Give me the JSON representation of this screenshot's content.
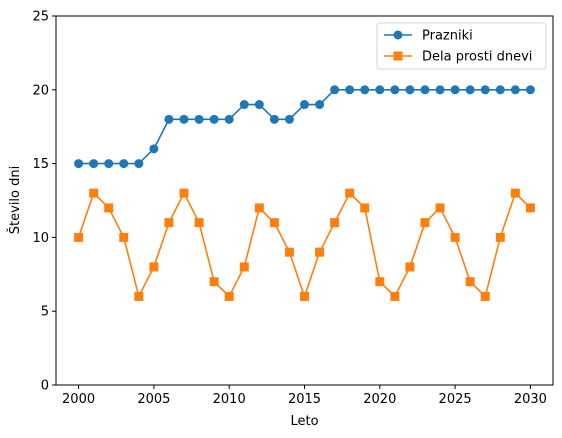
{
  "chart_data": {
    "type": "line",
    "title": "",
    "xlabel": "Leto",
    "ylabel": "Število dni",
    "xlim": [
      1998.5,
      2031.5
    ],
    "ylim": [
      0,
      25
    ],
    "grid": false,
    "legend_position": "top-right",
    "xticks": [
      2000,
      2005,
      2010,
      2015,
      2020,
      2025,
      2030
    ],
    "yticks": [
      0,
      5,
      10,
      15,
      20,
      25
    ],
    "x": [
      2000,
      2001,
      2002,
      2003,
      2004,
      2005,
      2006,
      2007,
      2008,
      2009,
      2010,
      2011,
      2012,
      2013,
      2014,
      2015,
      2016,
      2017,
      2018,
      2019,
      2020,
      2021,
      2022,
      2023,
      2024,
      2025,
      2026,
      2027,
      2028,
      2029,
      2030
    ],
    "series": [
      {
        "name": "Prazniki",
        "color": "#1f77b4",
        "marker": "circle",
        "values": [
          15,
          15,
          15,
          15,
          15,
          16,
          18,
          18,
          18,
          18,
          18,
          19,
          19,
          18,
          18,
          19,
          19,
          20,
          20,
          20,
          20,
          20,
          20,
          20,
          20,
          20,
          20,
          20,
          20,
          20,
          20
        ]
      },
      {
        "name": "Dela prosti dnevi",
        "color": "#ff7f0e",
        "marker": "square",
        "values": [
          10,
          13,
          12,
          10,
          6,
          8,
          11,
          13,
          11,
          7,
          6,
          8,
          12,
          11,
          9,
          6,
          9,
          11,
          13,
          12,
          7,
          6,
          8,
          11,
          12,
          10,
          7,
          6,
          10,
          13,
          12
        ]
      }
    ]
  }
}
